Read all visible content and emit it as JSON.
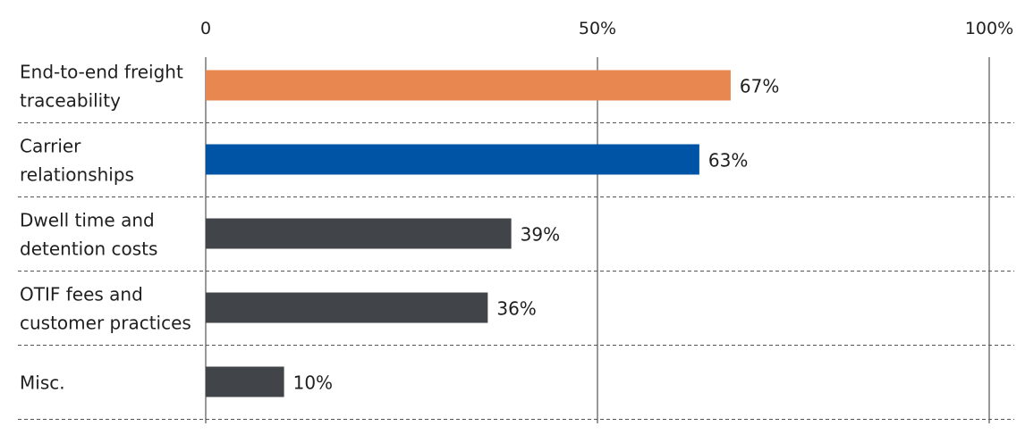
{
  "chart_data": {
    "type": "bar",
    "orientation": "horizontal",
    "title": "",
    "xlabel": "",
    "ylabel": "",
    "xlim": [
      0,
      100
    ],
    "x_ticks": [
      {
        "value": 0,
        "label": "0"
      },
      {
        "value": 50,
        "label": "50%"
      },
      {
        "value": 100,
        "label": "100%"
      }
    ],
    "categories": [
      [
        "End-to-end freight",
        "traceability"
      ],
      [
        "Carrier",
        "relationships"
      ],
      [
        "Dwell time and",
        "detention costs"
      ],
      [
        "OTIF fees and",
        "customer practices"
      ],
      [
        "Misc."
      ]
    ],
    "values": [
      67,
      63,
      39,
      36,
      10
    ],
    "value_labels": [
      "67%",
      "63%",
      "39%",
      "36%",
      "10%"
    ],
    "bar_colors": [
      "#E8874F",
      "#0054A6",
      "#414549",
      "#414549",
      "#414549"
    ],
    "grid": "vertical lines at 0, 50 and 100; dashed row separators",
    "legend": "none"
  }
}
